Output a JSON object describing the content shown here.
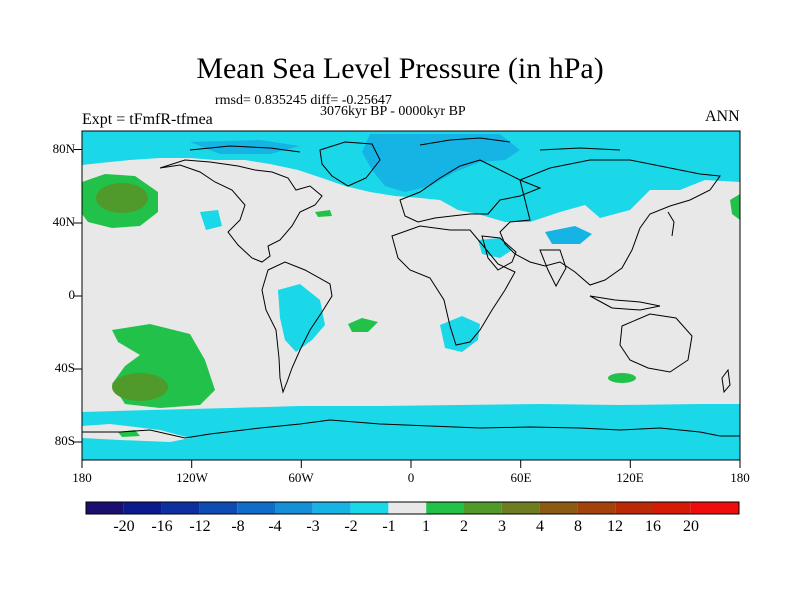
{
  "title": "Mean Sea Level Pressure (in hPa)",
  "stats_text": "rmsd= 0.835245  diff= -0.25647",
  "period": "3076kyr BP - 0000kyr BP",
  "experiment": "Expt = tFmfR-tfmea",
  "season": "ANN",
  "lat_labels": [
    "80N",
    "40N",
    "0",
    "40S",
    "80S"
  ],
  "lon_labels": [
    "180",
    "120W",
    "60W",
    "0",
    "60E",
    "120E",
    "180"
  ],
  "colorbar": {
    "labels": [
      "-20",
      "-16",
      "-12",
      "-8",
      "-4",
      "-3",
      "-2",
      "-1",
      "1",
      "2",
      "3",
      "4",
      "8",
      "12",
      "16",
      "20"
    ],
    "colors": [
      "#1a0f6e",
      "#0b1a8c",
      "#0d2fa0",
      "#0e4bb4",
      "#0f6dc8",
      "#1390d8",
      "#16b4e4",
      "#1ad8e8",
      "#e8e8e8",
      "#22c24a",
      "#4f9a2a",
      "#6e7d22",
      "#8c5a12",
      "#a3420b",
      "#bb2a06",
      "#d51a05",
      "#ee0c0c"
    ]
  },
  "palette": {
    "ocean_neutral": "#e8e8e8",
    "light_blue": "#1ad8e8",
    "mid_blue": "#16b4e4",
    "blue": "#1390d8",
    "green": "#22c24a",
    "dark_green": "#4f9a2a",
    "olive": "#6e7d22"
  }
}
